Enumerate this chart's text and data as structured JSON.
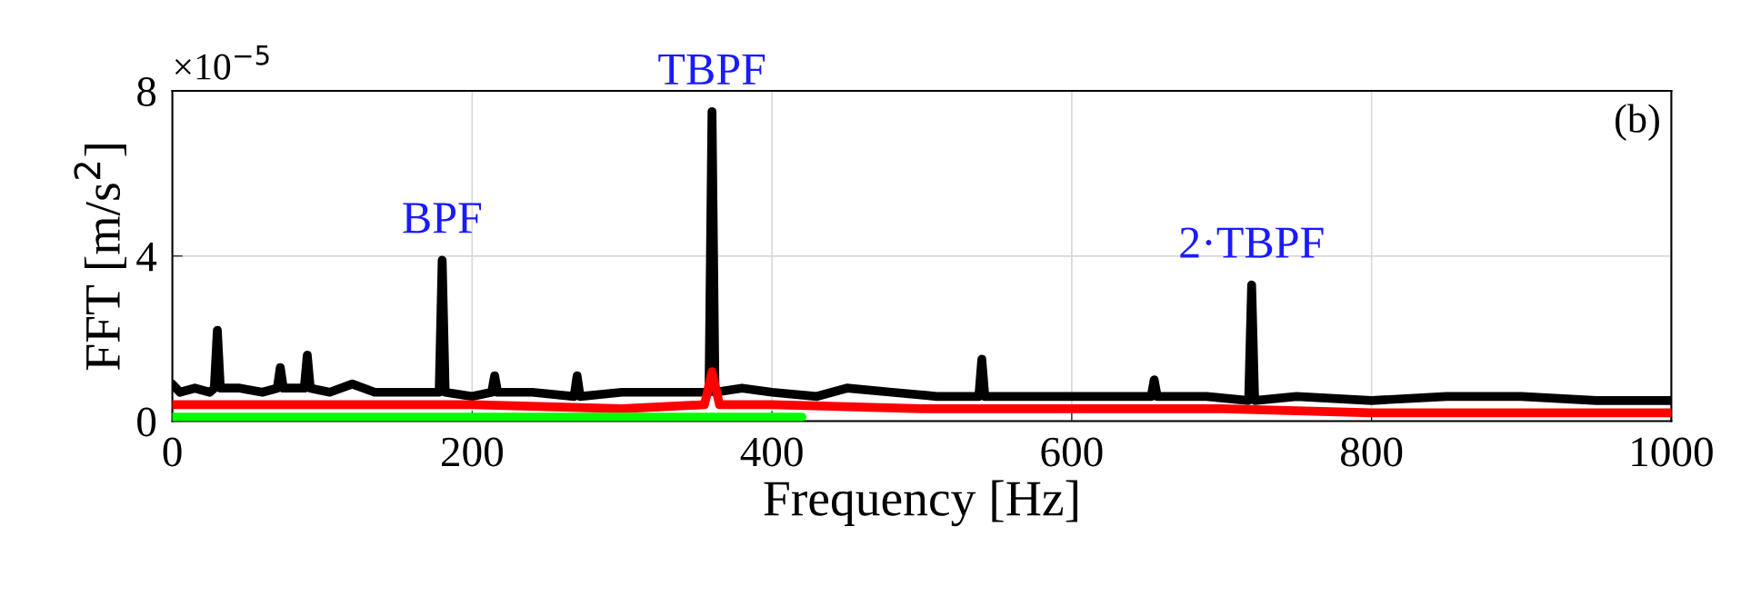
{
  "chart_data": {
    "type": "line",
    "xlabel": "Frequency [Hz]",
    "ylabel": "FFT [m/s$^{2}$]",
    "xlim": [
      0,
      1000
    ],
    "xticks": [
      0,
      200,
      400,
      600,
      800,
      1000
    ],
    "ylim": [
      0,
      8
    ],
    "yticks": [
      0,
      4,
      8
    ],
    "grid": true,
    "marker": "none",
    "line_style": "solid",
    "series": [
      {
        "color": "#000000",
        "x": [
          0,
          5,
          15,
          25,
          28,
          30,
          32,
          45,
          60,
          70,
          72,
          74,
          88,
          90,
          92,
          105,
          120,
          135,
          150,
          165,
          178,
          180,
          182,
          200,
          213,
          215,
          217,
          240,
          268,
          270,
          272,
          300,
          330,
          358,
          360,
          362,
          380,
          400,
          430,
          450,
          480,
          510,
          538,
          540,
          542,
          570,
          600,
          630,
          653,
          655,
          657,
          690,
          718,
          720,
          722,
          750,
          800,
          850,
          900,
          950,
          1000
        ],
        "values": [
          0.9,
          0.7,
          0.8,
          0.7,
          0.8,
          2.2,
          0.8,
          0.8,
          0.7,
          0.8,
          1.3,
          0.8,
          0.8,
          1.6,
          0.8,
          0.7,
          0.9,
          0.7,
          0.7,
          0.7,
          0.7,
          3.9,
          0.7,
          0.6,
          0.7,
          1.1,
          0.7,
          0.7,
          0.6,
          1.1,
          0.6,
          0.7,
          0.7,
          0.7,
          7.5,
          0.7,
          0.8,
          0.7,
          0.6,
          0.8,
          0.7,
          0.6,
          0.6,
          1.5,
          0.6,
          0.6,
          0.6,
          0.6,
          0.6,
          1.0,
          0.6,
          0.6,
          0.5,
          3.3,
          0.5,
          0.6,
          0.5,
          0.6,
          0.6,
          0.5,
          0.5
        ]
      },
      {
        "color": "#ff0000",
        "x": [
          0,
          100,
          200,
          300,
          355,
          360,
          365,
          400,
          500,
          600,
          700,
          800,
          900,
          1000
        ],
        "values": [
          0.4,
          0.4,
          0.4,
          0.3,
          0.4,
          1.2,
          0.4,
          0.4,
          0.3,
          0.3,
          0.3,
          0.2,
          0.2,
          0.2
        ]
      },
      {
        "color": "#00ff00",
        "x": [
          0,
          420
        ],
        "values": [
          0.1,
          0.1
        ]
      }
    ],
    "annotations": [
      {
        "text": "BPF",
        "x": 180,
        "y": 3.9
      },
      {
        "text": "TBPF",
        "x": 360,
        "y": 7.5
      },
      {
        "text": "2·TBPF",
        "x": 720,
        "y": 3.3
      },
      "(b)",
      "×10$^{−5}$"
    ]
  }
}
